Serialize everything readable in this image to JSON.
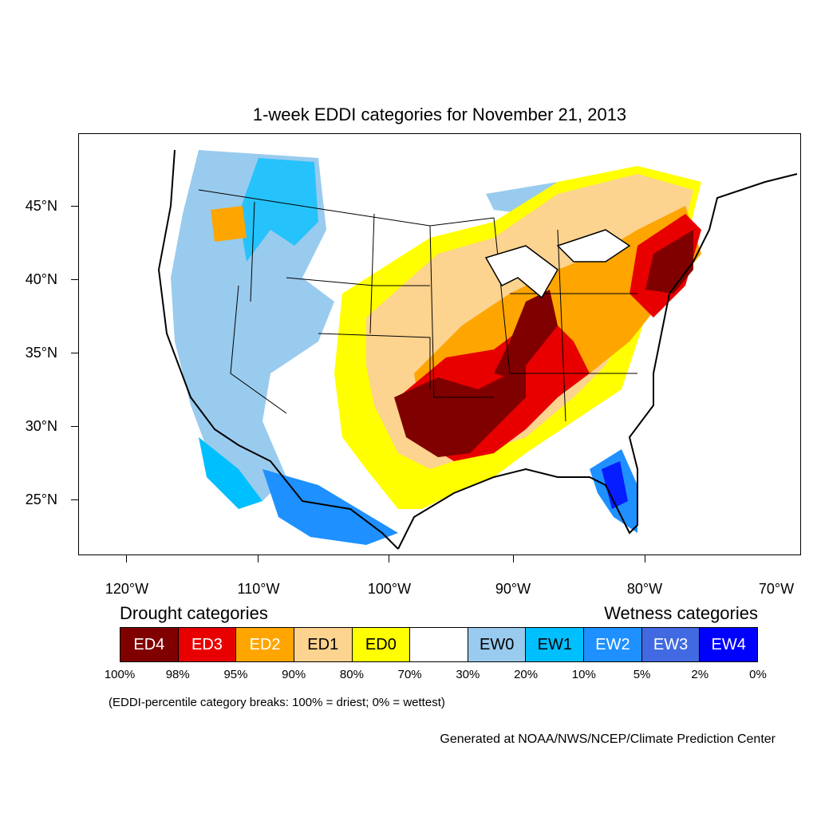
{
  "title": "1-week EDDI categories for November 21, 2013",
  "latitude_labels": [
    "45°N",
    "40°N",
    "35°N",
    "30°N",
    "25°N"
  ],
  "longitude_labels": [
    "120°W",
    "110°W",
    "100°W",
    "90°W",
    "80°W",
    "70°W"
  ],
  "legend": {
    "drought_heading": "Drought categories",
    "wetness_heading": "Wetness categories",
    "categories": [
      {
        "label": "ED4",
        "color": "#800000",
        "text_color": "#ffffff"
      },
      {
        "label": "ED3",
        "color": "#e80000",
        "text_color": "#ffffff"
      },
      {
        "label": "ED2",
        "color": "#ffa500",
        "text_color": "#ffffff"
      },
      {
        "label": "ED1",
        "color": "#fcd38f",
        "text_color": "#000000"
      },
      {
        "label": "ED0",
        "color": "#ffff00",
        "text_color": "#000000"
      },
      {
        "label": "",
        "color": "#ffffff",
        "text_color": "#000000"
      },
      {
        "label": "EW0",
        "color": "#99cbee",
        "text_color": "#000000"
      },
      {
        "label": "EW1",
        "color": "#00bfff",
        "text_color": "#000000"
      },
      {
        "label": "EW2",
        "color": "#1e90ff",
        "text_color": "#ffffff"
      },
      {
        "label": "EW3",
        "color": "#4169e1",
        "text_color": "#ffffff"
      },
      {
        "label": "EW4",
        "color": "#0000ff",
        "text_color": "#ffffff"
      }
    ],
    "percentiles": [
      "100%",
      "98%",
      "95%",
      "90%",
      "80%",
      "70%",
      "30%",
      "20%",
      "10%",
      "5%",
      "2%",
      "0%"
    ]
  },
  "note": "(EDDI-percentile category breaks: 100% = driest; 0% = wettest)",
  "credit": "Generated at NOAA/NWS/NCEP/Climate Prediction Center"
}
